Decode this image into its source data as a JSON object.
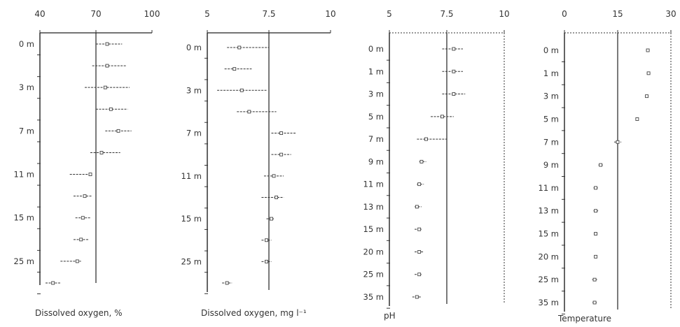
{
  "chart_data": [
    {
      "type": "scatter",
      "xlabel": "Dissolved oxygen, %",
      "ylabel": "",
      "xlim": [
        40,
        100
      ],
      "xticks": [
        "40",
        "70",
        "100"
      ],
      "reference_x": 70,
      "depth_labels": [
        "0 m",
        "3 m",
        "7 m",
        "11 m",
        "15 m",
        "25 m"
      ],
      "points": [
        {
          "mean": 76,
          "low": 70,
          "high": 84
        },
        {
          "mean": 76,
          "low": 68,
          "high": 86
        },
        {
          "mean": 75,
          "low": 64,
          "high": 88
        },
        {
          "mean": 78,
          "low": 70,
          "high": 87
        },
        {
          "mean": 82,
          "low": 75,
          "high": 89
        },
        {
          "mean": 73,
          "low": 67,
          "high": 83
        },
        {
          "mean": 67,
          "low": 56,
          "high": 67
        },
        {
          "mean": 64,
          "low": 58,
          "high": 68
        },
        {
          "mean": 63,
          "low": 59,
          "high": 67
        },
        {
          "mean": 62,
          "low": 58,
          "high": 66
        },
        {
          "mean": 60,
          "low": 51,
          "high": 62
        },
        {
          "mean": 47,
          "low": 43,
          "high": 51
        }
      ]
    },
    {
      "type": "scatter",
      "xlabel": "Dissolved oxygen, mg l⁻¹",
      "ylabel": "",
      "xlim": [
        5,
        10
      ],
      "xticks": [
        "5",
        "7.5",
        "10"
      ],
      "reference_x": 7.5,
      "depth_labels": [
        "0 m",
        "3 m",
        "7 m",
        "11 m",
        "15 m",
        "25 m"
      ],
      "points": [
        {
          "mean": 6.3,
          "low": 5.8,
          "high": 7.5
        },
        {
          "mean": 6.1,
          "low": 5.7,
          "high": 6.8
        },
        {
          "mean": 6.4,
          "low": 5.4,
          "high": 7.4
        },
        {
          "mean": 6.7,
          "low": 6.2,
          "high": 7.8
        },
        {
          "mean": 8.0,
          "low": 7.6,
          "high": 8.6
        },
        {
          "mean": 8.0,
          "low": 7.6,
          "high": 8.4
        },
        {
          "mean": 7.7,
          "low": 7.3,
          "high": 8.1
        },
        {
          "mean": 7.8,
          "low": 7.2,
          "high": 8.1
        },
        {
          "mean": 7.6,
          "low": 7.4,
          "high": 7.7
        },
        {
          "mean": 7.4,
          "low": 7.2,
          "high": 7.6
        },
        {
          "mean": 7.4,
          "low": 7.2,
          "high": 7.6
        },
        {
          "mean": 5.8,
          "low": 5.6,
          "high": 6.0
        }
      ]
    },
    {
      "type": "scatter",
      "xlabel": "pH",
      "ylabel": "",
      "xlim": [
        5,
        10
      ],
      "xticks": [
        "5",
        "7.5",
        "10"
      ],
      "reference_x": 7.5,
      "depth_labels": [
        "0 m",
        "1 m",
        "3 m",
        "5 m",
        "7 m",
        "9 m",
        "11 m",
        "13 m",
        "15 m",
        "20 m",
        "25 m",
        "35 m"
      ],
      "points": [
        {
          "mean": 7.8,
          "low": 7.3,
          "high": 8.2
        },
        {
          "mean": 7.8,
          "low": 7.3,
          "high": 8.2
        },
        {
          "mean": 7.8,
          "low": 7.3,
          "high": 8.3
        },
        {
          "mean": 7.3,
          "low": 6.8,
          "high": 7.8
        },
        {
          "mean": 6.6,
          "low": 6.2,
          "high": 7.5
        },
        {
          "mean": 6.4,
          "low": 6.3,
          "high": 6.6
        },
        {
          "mean": 6.3,
          "low": 6.2,
          "high": 6.5
        },
        {
          "mean": 6.2,
          "low": 6.1,
          "high": 6.4
        },
        {
          "mean": 6.3,
          "low": 6.1,
          "high": 6.4
        },
        {
          "mean": 6.3,
          "low": 6.1,
          "high": 6.5
        },
        {
          "mean": 6.3,
          "low": 6.1,
          "high": 6.4
        },
        {
          "mean": 6.2,
          "low": 6.0,
          "high": 6.4
        }
      ]
    },
    {
      "type": "scatter",
      "xlabel": "Temperature",
      "ylabel": "",
      "xlim": [
        0,
        30
      ],
      "xticks": [
        "0",
        "15",
        "30"
      ],
      "reference_x": 15,
      "depth_labels": [
        "0 m",
        "1 m",
        "3 m",
        "5 m",
        "7 m",
        "9 m",
        "11 m",
        "13 m",
        "15 m",
        "20 m",
        "25 m",
        "35 m"
      ],
      "points": [
        {
          "mean": 23.5,
          "low": 23.0,
          "high": 24.0
        },
        {
          "mean": 23.7,
          "low": 23.2,
          "high": 24.2
        },
        {
          "mean": 23.2,
          "low": 23.0,
          "high": 23.5
        },
        {
          "mean": 20.5,
          "low": 20.3,
          "high": 20.7
        },
        {
          "mean": 15.0,
          "low": 14.0,
          "high": 16.0
        },
        {
          "mean": 10.2,
          "low": 9.6,
          "high": 10.8
        },
        {
          "mean": 8.8,
          "low": 8.2,
          "high": 9.4
        },
        {
          "mean": 8.8,
          "low": 8.2,
          "high": 9.5
        },
        {
          "mean": 8.8,
          "low": 8.3,
          "high": 9.3
        },
        {
          "mean": 8.8,
          "low": 8.7,
          "high": 8.9
        },
        {
          "mean": 8.5,
          "low": 7.8,
          "high": 9.2
        },
        {
          "mean": 8.5,
          "low": 7.9,
          "high": 9.1
        }
      ]
    }
  ]
}
